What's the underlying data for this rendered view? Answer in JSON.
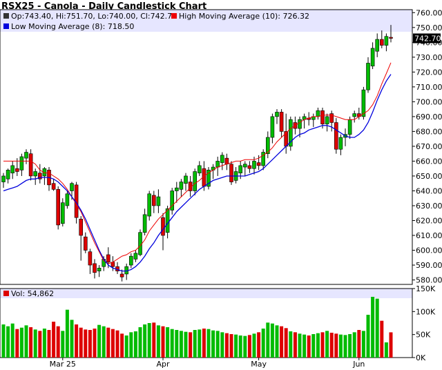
{
  "chart_title": "RSX25 - Canola - Daily Candlestick Chart",
  "legend": {
    "ohlc": "Op:743.40, Hi:751.70, Lo:740.00, Cl:742.70",
    "high_ma": "High Moving Average (10): 726.32",
    "low_ma": "Low Moving Average (8): 718.50",
    "volume": "Vol: 54,862"
  },
  "last_price_label": "742.70",
  "colors": {
    "up": "#00bb00",
    "down": "#dd0000",
    "high_ma": "#ee0000",
    "low_ma": "#0000dd",
    "legend_band": "#e6e6ff",
    "frame": "#000000"
  },
  "chart_data": {
    "type": "candlestick",
    "price_axis": {
      "range": [
        577,
        762
      ],
      "ticks": [
        580,
        590,
        600,
        610,
        620,
        630,
        640,
        650,
        660,
        670,
        680,
        690,
        700,
        710,
        720,
        730,
        740,
        750,
        760
      ],
      "tick_labels": [
        "580.00",
        "590.00",
        "600.00",
        "610.00",
        "620.00",
        "630.00",
        "640.00",
        "650.00",
        "660.00",
        "670.00",
        "680.00",
        "690.00",
        "700.00",
        "710.00",
        "720.00",
        "730.00",
        "740.00",
        "750.00",
        "760.00"
      ]
    },
    "volume_axis": {
      "range": [
        0,
        150000
      ],
      "ticks": [
        0,
        50000,
        100000,
        150000
      ],
      "tick_labels": [
        "0K",
        "50K",
        "100K",
        "150K"
      ]
    },
    "month_labels": [
      {
        "label": "Mar 25",
        "index": 13
      },
      {
        "label": "Apr",
        "index": 35
      },
      {
        "label": "May",
        "index": 56
      },
      {
        "label": "Jun",
        "index": 78
      }
    ],
    "candles": [
      {
        "o": 646,
        "h": 652,
        "l": 642,
        "c": 650
      },
      {
        "o": 648,
        "h": 655,
        "l": 645,
        "c": 654
      },
      {
        "o": 652,
        "h": 660,
        "l": 648,
        "c": 657
      },
      {
        "o": 655,
        "h": 662,
        "l": 650,
        "c": 653
      },
      {
        "o": 654,
        "h": 665,
        "l": 650,
        "c": 663
      },
      {
        "o": 662,
        "h": 668,
        "l": 658,
        "c": 666
      },
      {
        "o": 665,
        "h": 668,
        "l": 647,
        "c": 650
      },
      {
        "o": 650,
        "h": 655,
        "l": 644,
        "c": 653
      },
      {
        "o": 652,
        "h": 658,
        "l": 645,
        "c": 648
      },
      {
        "o": 650,
        "h": 656,
        "l": 644,
        "c": 655
      },
      {
        "o": 654,
        "h": 656,
        "l": 640,
        "c": 644
      },
      {
        "o": 645,
        "h": 648,
        "l": 640,
        "c": 641
      },
      {
        "o": 641,
        "h": 643,
        "l": 614,
        "c": 617
      },
      {
        "o": 618,
        "h": 635,
        "l": 616,
        "c": 632
      },
      {
        "o": 630,
        "h": 640,
        "l": 628,
        "c": 638
      },
      {
        "o": 640,
        "h": 646,
        "l": 634,
        "c": 645
      },
      {
        "o": 644,
        "h": 646,
        "l": 618,
        "c": 622
      },
      {
        "o": 621,
        "h": 623,
        "l": 593,
        "c": 610
      },
      {
        "o": 609,
        "h": 612,
        "l": 598,
        "c": 600
      },
      {
        "o": 599,
        "h": 601,
        "l": 584,
        "c": 590
      },
      {
        "o": 591,
        "h": 594,
        "l": 581,
        "c": 585
      },
      {
        "o": 586,
        "h": 590,
        "l": 582,
        "c": 588
      },
      {
        "o": 589,
        "h": 596,
        "l": 586,
        "c": 594
      },
      {
        "o": 597,
        "h": 602,
        "l": 588,
        "c": 592
      },
      {
        "o": 592,
        "h": 596,
        "l": 586,
        "c": 589
      },
      {
        "o": 589,
        "h": 592,
        "l": 584,
        "c": 586
      },
      {
        "o": 584,
        "h": 587,
        "l": 579,
        "c": 582
      },
      {
        "o": 584,
        "h": 591,
        "l": 580,
        "c": 589
      },
      {
        "o": 590,
        "h": 598,
        "l": 588,
        "c": 596
      },
      {
        "o": 594,
        "h": 600,
        "l": 592,
        "c": 598
      },
      {
        "o": 597,
        "h": 614,
        "l": 596,
        "c": 612
      },
      {
        "o": 612,
        "h": 628,
        "l": 610,
        "c": 624
      },
      {
        "o": 623,
        "h": 640,
        "l": 620,
        "c": 638
      },
      {
        "o": 637,
        "h": 640,
        "l": 625,
        "c": 630
      },
      {
        "o": 630,
        "h": 641,
        "l": 625,
        "c": 636
      },
      {
        "o": 622,
        "h": 625,
        "l": 600,
        "c": 610
      },
      {
        "o": 612,
        "h": 630,
        "l": 608,
        "c": 628
      },
      {
        "o": 627,
        "h": 642,
        "l": 624,
        "c": 640
      },
      {
        "o": 640,
        "h": 646,
        "l": 632,
        "c": 642
      },
      {
        "o": 641,
        "h": 648,
        "l": 636,
        "c": 646
      },
      {
        "o": 645,
        "h": 652,
        "l": 640,
        "c": 650
      },
      {
        "o": 646,
        "h": 650,
        "l": 636,
        "c": 640
      },
      {
        "o": 640,
        "h": 655,
        "l": 637,
        "c": 653
      },
      {
        "o": 652,
        "h": 660,
        "l": 650,
        "c": 657
      },
      {
        "o": 655,
        "h": 660,
        "l": 640,
        "c": 643
      },
      {
        "o": 643,
        "h": 656,
        "l": 641,
        "c": 654
      },
      {
        "o": 654,
        "h": 658,
        "l": 648,
        "c": 656
      },
      {
        "o": 656,
        "h": 663,
        "l": 650,
        "c": 660
      },
      {
        "o": 659,
        "h": 666,
        "l": 654,
        "c": 664
      },
      {
        "o": 662,
        "h": 665,
        "l": 654,
        "c": 658
      },
      {
        "o": 658,
        "h": 660,
        "l": 644,
        "c": 646
      },
      {
        "o": 647,
        "h": 656,
        "l": 645,
        "c": 653
      },
      {
        "o": 652,
        "h": 660,
        "l": 648,
        "c": 657
      },
      {
        "o": 656,
        "h": 660,
        "l": 650,
        "c": 658
      },
      {
        "o": 657,
        "h": 660,
        "l": 652,
        "c": 655
      },
      {
        "o": 655,
        "h": 663,
        "l": 651,
        "c": 660
      },
      {
        "o": 659,
        "h": 664,
        "l": 654,
        "c": 657
      },
      {
        "o": 657,
        "h": 668,
        "l": 654,
        "c": 666
      },
      {
        "o": 665,
        "h": 680,
        "l": 662,
        "c": 676
      },
      {
        "o": 676,
        "h": 692,
        "l": 672,
        "c": 690
      },
      {
        "o": 690,
        "h": 695,
        "l": 685,
        "c": 693
      },
      {
        "o": 693,
        "h": 695,
        "l": 676,
        "c": 680
      },
      {
        "o": 680,
        "h": 692,
        "l": 665,
        "c": 670
      },
      {
        "o": 670,
        "h": 690,
        "l": 667,
        "c": 688
      },
      {
        "o": 686,
        "h": 690,
        "l": 678,
        "c": 682
      },
      {
        "o": 682,
        "h": 690,
        "l": 676,
        "c": 688
      },
      {
        "o": 688,
        "h": 692,
        "l": 682,
        "c": 690
      },
      {
        "o": 689,
        "h": 693,
        "l": 684,
        "c": 688
      },
      {
        "o": 688,
        "h": 692,
        "l": 683,
        "c": 690
      },
      {
        "o": 690,
        "h": 696,
        "l": 688,
        "c": 694
      },
      {
        "o": 694,
        "h": 696,
        "l": 682,
        "c": 685
      },
      {
        "o": 685,
        "h": 692,
        "l": 680,
        "c": 690
      },
      {
        "o": 692,
        "h": 694,
        "l": 680,
        "c": 686
      },
      {
        "o": 686,
        "h": 689,
        "l": 665,
        "c": 668
      },
      {
        "o": 668,
        "h": 678,
        "l": 664,
        "c": 676
      },
      {
        "o": 676,
        "h": 682,
        "l": 670,
        "c": 678
      },
      {
        "o": 678,
        "h": 690,
        "l": 675,
        "c": 688
      },
      {
        "o": 690,
        "h": 694,
        "l": 686,
        "c": 692
      },
      {
        "o": 692,
        "h": 696,
        "l": 688,
        "c": 690
      },
      {
        "o": 690,
        "h": 710,
        "l": 688,
        "c": 708
      },
      {
        "o": 708,
        "h": 730,
        "l": 706,
        "c": 726
      },
      {
        "o": 724,
        "h": 740,
        "l": 722,
        "c": 736
      },
      {
        "o": 734,
        "h": 746,
        "l": 730,
        "c": 742
      },
      {
        "o": 742,
        "h": 748,
        "l": 736,
        "c": 738
      },
      {
        "o": 738,
        "h": 746,
        "l": 734,
        "c": 744
      },
      {
        "o": 743.4,
        "h": 751.7,
        "l": 740.0,
        "c": 742.7
      }
    ],
    "high_ma": [
      660,
      660,
      660,
      660,
      660,
      660,
      660,
      658,
      654,
      652,
      652,
      650,
      648,
      645,
      641,
      636,
      631,
      626,
      619,
      612,
      605,
      599,
      593,
      591,
      592,
      594,
      596,
      597,
      599,
      600,
      603,
      607,
      613,
      617,
      621,
      624,
      627,
      630,
      633,
      636,
      639,
      642,
      645,
      647,
      650,
      652,
      654,
      656,
      657,
      658,
      659,
      660,
      660,
      661,
      661,
      661,
      662,
      664,
      666,
      669,
      673,
      676,
      679,
      682,
      684,
      686,
      688,
      689,
      690,
      690,
      691,
      691,
      691,
      690,
      689,
      688,
      688,
      688,
      690,
      692,
      694,
      698,
      704,
      712,
      719,
      726.32
    ],
    "low_ma": [
      640,
      641,
      642,
      643,
      645,
      647,
      648,
      648,
      649,
      649,
      649,
      648,
      646,
      643,
      640,
      636,
      632,
      627,
      621,
      614,
      607,
      600,
      594,
      590,
      588,
      587,
      586,
      586,
      587,
      589,
      592,
      596,
      601,
      605,
      610,
      614,
      618,
      622,
      626,
      629,
      632,
      635,
      638,
      641,
      643,
      645,
      647,
      648,
      649,
      650,
      650,
      650,
      650,
      650,
      651,
      652,
      653,
      655,
      658,
      661,
      664,
      667,
      670,
      673,
      676,
      678,
      679,
      681,
      682,
      683,
      684,
      684,
      683,
      681,
      679,
      677,
      676,
      676,
      678,
      681,
      686,
      693,
      701,
      708,
      714,
      718.5
    ],
    "volume": [
      72000,
      68000,
      74000,
      62000,
      65000,
      70000,
      66000,
      61000,
      58000,
      63000,
      60000,
      78000,
      68000,
      58000,
      104000,
      82000,
      72000,
      65000,
      61000,
      60000,
      63000,
      71000,
      68000,
      65000,
      62000,
      59000,
      52000,
      48000,
      55000,
      57000,
      66000,
      72000,
      75000,
      76000,
      70000,
      68000,
      66000,
      62000,
      60000,
      58000,
      56000,
      55000,
      60000,
      61000,
      63000,
      62000,
      59000,
      58000,
      55000,
      53000,
      51000,
      50000,
      48000,
      47000,
      49000,
      52000,
      55000,
      63000,
      76000,
      74000,
      70000,
      68000,
      64000,
      57000,
      55000,
      52000,
      50000,
      48000,
      51000,
      53000,
      55000,
      58000,
      54000,
      52000,
      50000,
      49000,
      51000,
      55000,
      60000,
      58000,
      93000,
      132000,
      128000,
      80000,
      33000,
      54862
    ]
  }
}
